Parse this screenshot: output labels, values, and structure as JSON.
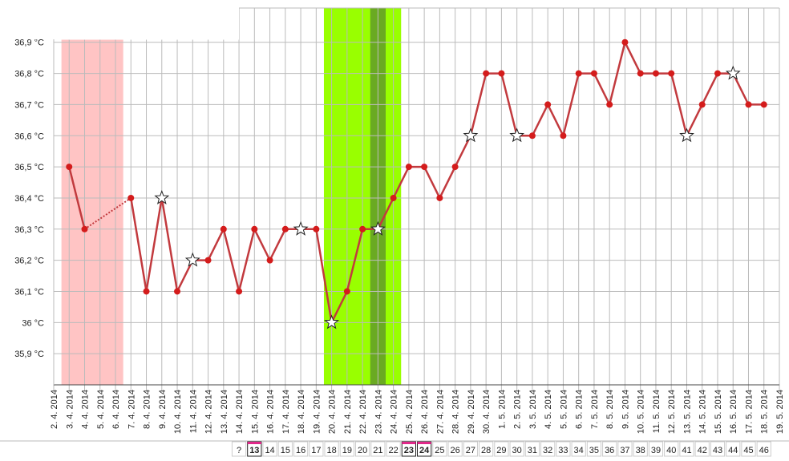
{
  "chart_data": {
    "type": "line",
    "categories": [
      "2. 4. 2014",
      "3. 4. 2014",
      "4. 4. 2014",
      "5. 4. 2014",
      "6. 4. 2014",
      "7. 4. 2014",
      "8. 4. 2014",
      "9. 4. 2014",
      "10. 4. 2014",
      "11. 4. 2014",
      "12. 4. 2014",
      "13. 4. 2014",
      "14. 4. 2014",
      "15. 4. 2014",
      "16. 4. 2014",
      "17. 4. 2014",
      "18. 4. 2014",
      "19. 4. 2014",
      "20. 4. 2014",
      "21. 4. 2014",
      "22. 4. 2014",
      "23. 4. 2014",
      "24. 4. 2014",
      "25. 4. 2014",
      "26. 4. 2014",
      "27. 4. 2014",
      "28. 4. 2014",
      "29. 4. 2014",
      "30. 4. 2014",
      "1. 5. 2014",
      "2. 5. 2014",
      "3. 5. 2014",
      "4. 5. 2014",
      "5. 5. 2014",
      "6. 5. 2014",
      "7. 5. 2014",
      "8. 5. 2014",
      "9. 5. 2014",
      "10. 5. 2014",
      "11. 5. 2014",
      "12. 5. 2014",
      "13. 5. 2014",
      "14. 5. 2014",
      "15. 5. 2014",
      "16. 5. 2014",
      "17. 5. 2014",
      "18. 5. 2014",
      "19. 5. 2014"
    ],
    "series": [
      {
        "color": "#c23a3e",
        "marker_color": "#d41c1c",
        "values": [
          null,
          36.5,
          36.3,
          null,
          null,
          36.4,
          36.1,
          36.4,
          36.1,
          36.2,
          36.2,
          36.3,
          36.1,
          36.3,
          36.2,
          36.3,
          36.3,
          36.3,
          36.0,
          36.1,
          36.3,
          36.3,
          36.4,
          36.5,
          36.5,
          36.4,
          36.5,
          36.6,
          36.8,
          36.8,
          36.6,
          36.6,
          36.7,
          36.6,
          36.8,
          36.8,
          36.7,
          36.9,
          36.8,
          36.8,
          36.8,
          36.6,
          36.7,
          36.8,
          36.8,
          36.7,
          36.7,
          null
        ],
        "markers": [
          "dot",
          "dot",
          "dot",
          "dot",
          "dot",
          "dot",
          "dot",
          "star",
          "dot",
          "star",
          "dot",
          "dot",
          "dot",
          "dot",
          "dot",
          "dot",
          "star",
          "dot",
          "star",
          "dot",
          "dot",
          "star",
          "dot",
          "dot",
          "dot",
          "dot",
          "dot",
          "star",
          "dot",
          "dot",
          "star",
          "dot",
          "dot",
          "dot",
          "dot",
          "dot",
          "dot",
          "dot",
          "dot",
          "dot",
          "dot",
          "star",
          "dot",
          "dot",
          "star",
          "dot",
          "dot",
          "dot"
        ]
      }
    ],
    "bands": [
      {
        "from": "3. 4. 2014",
        "to": "6. 4. 2014",
        "color": "#ffc4c4"
      },
      {
        "from": "20. 4. 2014",
        "to": "24. 4. 2014",
        "color": "#99ff00"
      },
      {
        "from": "23. 4. 2014",
        "to": "23. 4. 2014",
        "color": "#6aaa22"
      }
    ],
    "ylim": [
      35.8,
      37.01
    ],
    "yticks": [
      {
        "value": 35.9,
        "label": "35,9 °C"
      },
      {
        "value": 36.0,
        "label": "36 °C"
      },
      {
        "value": 36.1,
        "label": "36,1 °C"
      },
      {
        "value": 36.2,
        "label": "36,2 °C"
      },
      {
        "value": 36.3,
        "label": "36,3 °C"
      },
      {
        "value": 36.4,
        "label": "36,4 °C"
      },
      {
        "value": 36.5,
        "label": "36,5 °C"
      },
      {
        "value": 36.6,
        "label": "36,6 °C"
      },
      {
        "value": 36.7,
        "label": "36,7 °C"
      },
      {
        "value": 36.8,
        "label": "36,8 °C"
      },
      {
        "value": 36.9,
        "label": "36,9 °C"
      }
    ],
    "grid": true,
    "cycle_days": [
      null,
      null,
      null,
      null,
      null,
      null,
      null,
      null,
      null,
      null,
      null,
      null,
      "?",
      13,
      14,
      15,
      16,
      17,
      18,
      19,
      20,
      21,
      22,
      23,
      24,
      25,
      26,
      27,
      28,
      29,
      30,
      31,
      32,
      33,
      34,
      35,
      36,
      37,
      38,
      39,
      40,
      41,
      42,
      43,
      44,
      45,
      46,
      null
    ],
    "highlighted_days": [
      13,
      23,
      24
    ]
  }
}
